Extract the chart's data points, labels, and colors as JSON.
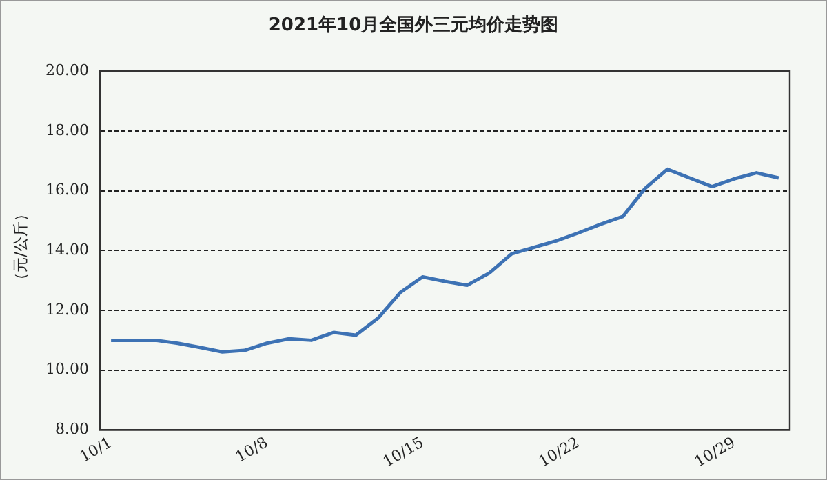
{
  "chart_data": {
    "type": "line",
    "title": "2021年10月全国外三元均价走势图",
    "ylabel": "（元/公斤）",
    "categories": [
      "10/1",
      null,
      null,
      null,
      null,
      null,
      null,
      "10/8",
      null,
      null,
      null,
      null,
      null,
      null,
      "10/15",
      null,
      null,
      null,
      null,
      null,
      null,
      "10/22",
      null,
      null,
      null,
      null,
      null,
      null,
      "10/29",
      null,
      null
    ],
    "series": [
      {
        "color": "#3d72b4",
        "values": [
          11.0,
          11.0,
          11.0,
          10.9,
          10.76,
          10.61,
          10.66,
          10.9,
          11.05,
          11.0,
          11.26,
          11.17,
          11.74,
          12.6,
          13.12,
          12.97,
          12.84,
          13.25,
          13.89,
          14.11,
          14.32,
          14.59,
          14.88,
          15.14,
          16.08,
          16.72,
          16.43,
          16.14,
          16.4,
          16.6,
          16.43
        ]
      }
    ],
    "ylim": [
      8,
      20
    ],
    "yticks": [
      {
        "value": 8,
        "label": "8.00"
      },
      {
        "value": 10,
        "label": "10.00"
      },
      {
        "value": 12,
        "label": "12.00"
      },
      {
        "value": 14,
        "label": "14.00"
      },
      {
        "value": 16,
        "label": "16.00"
      },
      {
        "value": 18,
        "label": "18.00"
      },
      {
        "value": 20,
        "label": "20.00"
      }
    ],
    "grid": "y",
    "legend": false,
    "marker": "none",
    "line_style": "solid"
  }
}
